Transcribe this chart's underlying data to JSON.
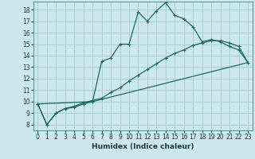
{
  "xlabel": "Humidex (Indice chaleur)",
  "bg_color": "#cce8ec",
  "grid_color": "#aacdd4",
  "line_color": "#1a6b5e",
  "xlim": [
    -0.5,
    23.5
  ],
  "ylim": [
    7.5,
    18.7
  ],
  "xticks": [
    0,
    1,
    2,
    3,
    4,
    5,
    6,
    7,
    8,
    9,
    10,
    11,
    12,
    13,
    14,
    15,
    16,
    17,
    18,
    19,
    20,
    21,
    22,
    23
  ],
  "yticks": [
    8,
    9,
    10,
    11,
    12,
    13,
    14,
    15,
    16,
    17,
    18
  ],
  "line1_x": [
    0,
    1,
    2,
    3,
    4,
    5,
    6,
    7,
    8,
    9,
    10,
    11,
    12,
    13,
    14,
    15,
    16,
    17,
    18,
    19,
    20,
    21,
    22,
    23
  ],
  "line1_y": [
    9.8,
    8.0,
    9.0,
    9.4,
    9.5,
    9.8,
    10.0,
    13.5,
    13.8,
    15.0,
    15.0,
    17.8,
    17.0,
    17.9,
    18.6,
    17.5,
    17.2,
    16.5,
    15.2,
    15.4,
    15.2,
    14.8,
    14.5,
    13.4
  ],
  "line2_x": [
    0,
    1,
    2,
    3,
    4,
    5,
    6,
    7,
    8,
    9,
    10,
    11,
    12,
    13,
    14,
    15,
    16,
    17,
    18,
    19,
    20,
    21,
    22,
    23
  ],
  "line2_y": [
    9.8,
    8.0,
    9.0,
    9.4,
    9.6,
    9.9,
    10.1,
    10.3,
    10.8,
    11.2,
    11.8,
    12.3,
    12.8,
    13.3,
    13.8,
    14.2,
    14.5,
    14.9,
    15.1,
    15.3,
    15.3,
    15.1,
    14.8,
    13.4
  ],
  "line3_x": [
    0,
    6,
    23
  ],
  "line3_y": [
    9.8,
    10.0,
    13.4
  ]
}
